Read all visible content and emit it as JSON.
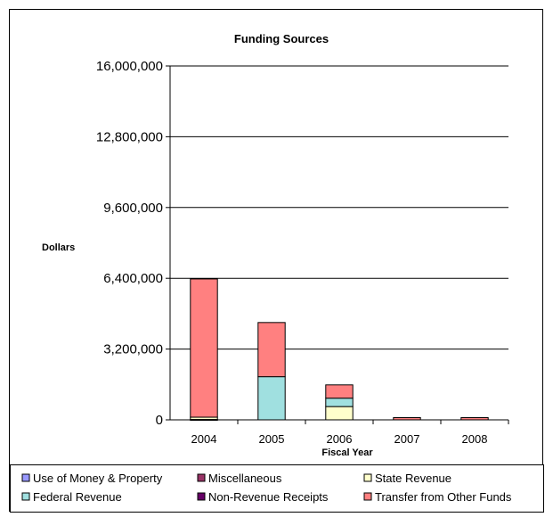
{
  "chart_data": {
    "type": "bar",
    "stacked": true,
    "title": "Funding Sources",
    "xlabel": "Fiscal Year",
    "ylabel": "Dollars",
    "ylim": [
      0,
      16000000
    ],
    "yticks": [
      0,
      3200000,
      6400000,
      9600000,
      12800000,
      16000000
    ],
    "ytick_labels": [
      "0",
      "3,200,000",
      "6,400,000",
      "9,600,000",
      "12,800,000",
      "16,000,000"
    ],
    "grid": true,
    "legend_position": "bottom",
    "categories": [
      "2004",
      "2005",
      "2006",
      "2007",
      "2008"
    ],
    "series": [
      {
        "name": "Use of Money & Property",
        "color": "#9999FF",
        "values": [
          0,
          0,
          0,
          0,
          0
        ]
      },
      {
        "name": "Miscellaneous",
        "color": "#993366",
        "values": [
          20000,
          0,
          0,
          0,
          0
        ]
      },
      {
        "name": "State Revenue",
        "color": "#FFFFCC",
        "values": [
          100000,
          0,
          600000,
          0,
          0
        ]
      },
      {
        "name": "Federal Revenue",
        "color": "#A0E0E0",
        "values": [
          0,
          1950000,
          380000,
          0,
          0
        ]
      },
      {
        "name": "Non-Revenue Receipts",
        "color": "#660066",
        "values": [
          0,
          0,
          0,
          0,
          0
        ]
      },
      {
        "name": "Transfer from Other Funds",
        "color": "#FF8080",
        "values": [
          6250000,
          2450000,
          600000,
          100000,
          100000
        ]
      }
    ]
  }
}
